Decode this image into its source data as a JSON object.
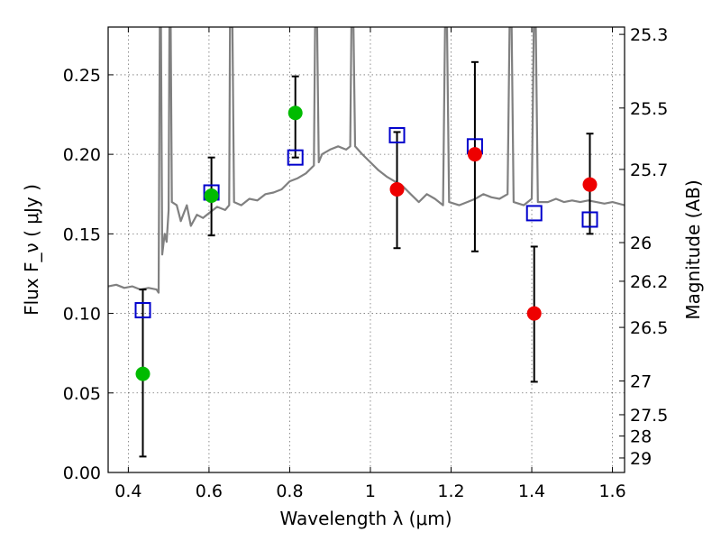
{
  "chart_data": {
    "type": "scatter",
    "xlabel": "Wavelength  λ (μm)",
    "ylabel": "Flux  F_ν  ( μJy )",
    "y2label": "Magnitude (AB)",
    "xlim": [
      0.35,
      1.63
    ],
    "ylim": [
      0.0,
      0.28
    ],
    "x_ticks": [
      0.4,
      0.6,
      0.8,
      1.0,
      1.2,
      1.4,
      1.6
    ],
    "x_tick_labels": [
      "0.4",
      "0.6",
      "0.8",
      "1",
      "1.2",
      "1.4",
      "1.6"
    ],
    "y_ticks": [
      0.0,
      0.05,
      0.1,
      0.15,
      0.2,
      0.25
    ],
    "y_tick_labels": [
      "0.00",
      "0.05",
      "0.10",
      "0.15",
      "0.20",
      "0.25"
    ],
    "y2_ticks": [
      {
        "label": "25.3",
        "flux": 0.2754
      },
      {
        "label": "25.5",
        "flux": 0.2291
      },
      {
        "label": "25.7",
        "flux": 0.1905
      },
      {
        "label": "26",
        "flux": 0.1445
      },
      {
        "label": "26.2",
        "flux": 0.1202
      },
      {
        "label": "26.5",
        "flux": 0.0912
      },
      {
        "label": "27",
        "flux": 0.0575
      },
      {
        "label": "27.5",
        "flux": 0.0363
      },
      {
        "label": "28",
        "flux": 0.0229
      },
      {
        "label": "29",
        "flux": 0.0091
      }
    ],
    "grid": true,
    "colors": {
      "model": "#808080",
      "green": "#00bb00",
      "red": "#ee0000",
      "box": "#0000cc",
      "error": "#000000"
    },
    "model_spectrum": [
      [
        0.35,
        0.117
      ],
      [
        0.37,
        0.118
      ],
      [
        0.39,
        0.116
      ],
      [
        0.41,
        0.117
      ],
      [
        0.43,
        0.115
      ],
      [
        0.45,
        0.116
      ],
      [
        0.47,
        0.115
      ],
      [
        0.475,
        0.113
      ],
      [
        0.478,
        0.28
      ],
      [
        0.481,
        0.28
      ],
      [
        0.484,
        0.137
      ],
      [
        0.49,
        0.15
      ],
      [
        0.495,
        0.145
      ],
      [
        0.5,
        0.165
      ],
      [
        0.502,
        0.28
      ],
      [
        0.505,
        0.28
      ],
      [
        0.508,
        0.17
      ],
      [
        0.52,
        0.168
      ],
      [
        0.53,
        0.158
      ],
      [
        0.545,
        0.168
      ],
      [
        0.555,
        0.155
      ],
      [
        0.57,
        0.162
      ],
      [
        0.585,
        0.16
      ],
      [
        0.6,
        0.163
      ],
      [
        0.62,
        0.167
      ],
      [
        0.64,
        0.165
      ],
      [
        0.65,
        0.168
      ],
      [
        0.652,
        0.28
      ],
      [
        0.658,
        0.28
      ],
      [
        0.662,
        0.17
      ],
      [
        0.68,
        0.168
      ],
      [
        0.7,
        0.172
      ],
      [
        0.72,
        0.171
      ],
      [
        0.74,
        0.175
      ],
      [
        0.76,
        0.176
      ],
      [
        0.78,
        0.178
      ],
      [
        0.8,
        0.183
      ],
      [
        0.82,
        0.185
      ],
      [
        0.84,
        0.188
      ],
      [
        0.86,
        0.193
      ],
      [
        0.863,
        0.28
      ],
      [
        0.868,
        0.28
      ],
      [
        0.872,
        0.195
      ],
      [
        0.88,
        0.2
      ],
      [
        0.9,
        0.203
      ],
      [
        0.92,
        0.205
      ],
      [
        0.94,
        0.203
      ],
      [
        0.95,
        0.205
      ],
      [
        0.953,
        0.28
      ],
      [
        0.958,
        0.28
      ],
      [
        0.962,
        0.205
      ],
      [
        0.98,
        0.2
      ],
      [
        1.0,
        0.195
      ],
      [
        1.02,
        0.19
      ],
      [
        1.04,
        0.186
      ],
      [
        1.06,
        0.183
      ],
      [
        1.08,
        0.18
      ],
      [
        1.1,
        0.175
      ],
      [
        1.12,
        0.17
      ],
      [
        1.14,
        0.175
      ],
      [
        1.16,
        0.172
      ],
      [
        1.18,
        0.168
      ],
      [
        1.185,
        0.28
      ],
      [
        1.19,
        0.28
      ],
      [
        1.195,
        0.17
      ],
      [
        1.22,
        0.168
      ],
      [
        1.24,
        0.17
      ],
      [
        1.26,
        0.172
      ],
      [
        1.28,
        0.175
      ],
      [
        1.3,
        0.173
      ],
      [
        1.32,
        0.172
      ],
      [
        1.34,
        0.175
      ],
      [
        1.345,
        0.28
      ],
      [
        1.35,
        0.28
      ],
      [
        1.355,
        0.17
      ],
      [
        1.38,
        0.168
      ],
      [
        1.4,
        0.172
      ],
      [
        1.405,
        0.28
      ],
      [
        1.41,
        0.28
      ],
      [
        1.415,
        0.17
      ],
      [
        1.44,
        0.17
      ],
      [
        1.46,
        0.172
      ],
      [
        1.48,
        0.17
      ],
      [
        1.5,
        0.171
      ],
      [
        1.52,
        0.17
      ],
      [
        1.54,
        0.171
      ],
      [
        1.56,
        0.17
      ],
      [
        1.58,
        0.169
      ],
      [
        1.6,
        0.17
      ],
      [
        1.63,
        0.168
      ]
    ],
    "green_points": [
      {
        "x": 0.436,
        "y": 0.062
      },
      {
        "x": 0.606,
        "y": 0.174
      },
      {
        "x": 0.814,
        "y": 0.226
      }
    ],
    "red_points": [
      {
        "x": 1.066,
        "y": 0.178
      },
      {
        "x": 1.259,
        "y": 0.2
      },
      {
        "x": 1.406,
        "y": 0.1
      },
      {
        "x": 1.544,
        "y": 0.181
      }
    ],
    "error_bars": [
      {
        "x": 0.436,
        "low": 0.01,
        "high": 0.115
      },
      {
        "x": 0.606,
        "low": 0.149,
        "high": 0.198
      },
      {
        "x": 0.814,
        "low": 0.198,
        "high": 0.249
      },
      {
        "x": 1.066,
        "low": 0.141,
        "high": 0.214
      },
      {
        "x": 1.259,
        "low": 0.139,
        "high": 0.258
      },
      {
        "x": 1.406,
        "low": 0.057,
        "high": 0.142
      },
      {
        "x": 1.544,
        "low": 0.15,
        "high": 0.213
      }
    ],
    "open_squares": [
      {
        "x": 0.436,
        "y": 0.102
      },
      {
        "x": 0.606,
        "y": 0.176
      },
      {
        "x": 0.814,
        "y": 0.198
      },
      {
        "x": 1.066,
        "y": 0.212
      },
      {
        "x": 1.259,
        "y": 0.205
      },
      {
        "x": 1.406,
        "y": 0.163
      },
      {
        "x": 1.544,
        "y": 0.159
      }
    ]
  }
}
